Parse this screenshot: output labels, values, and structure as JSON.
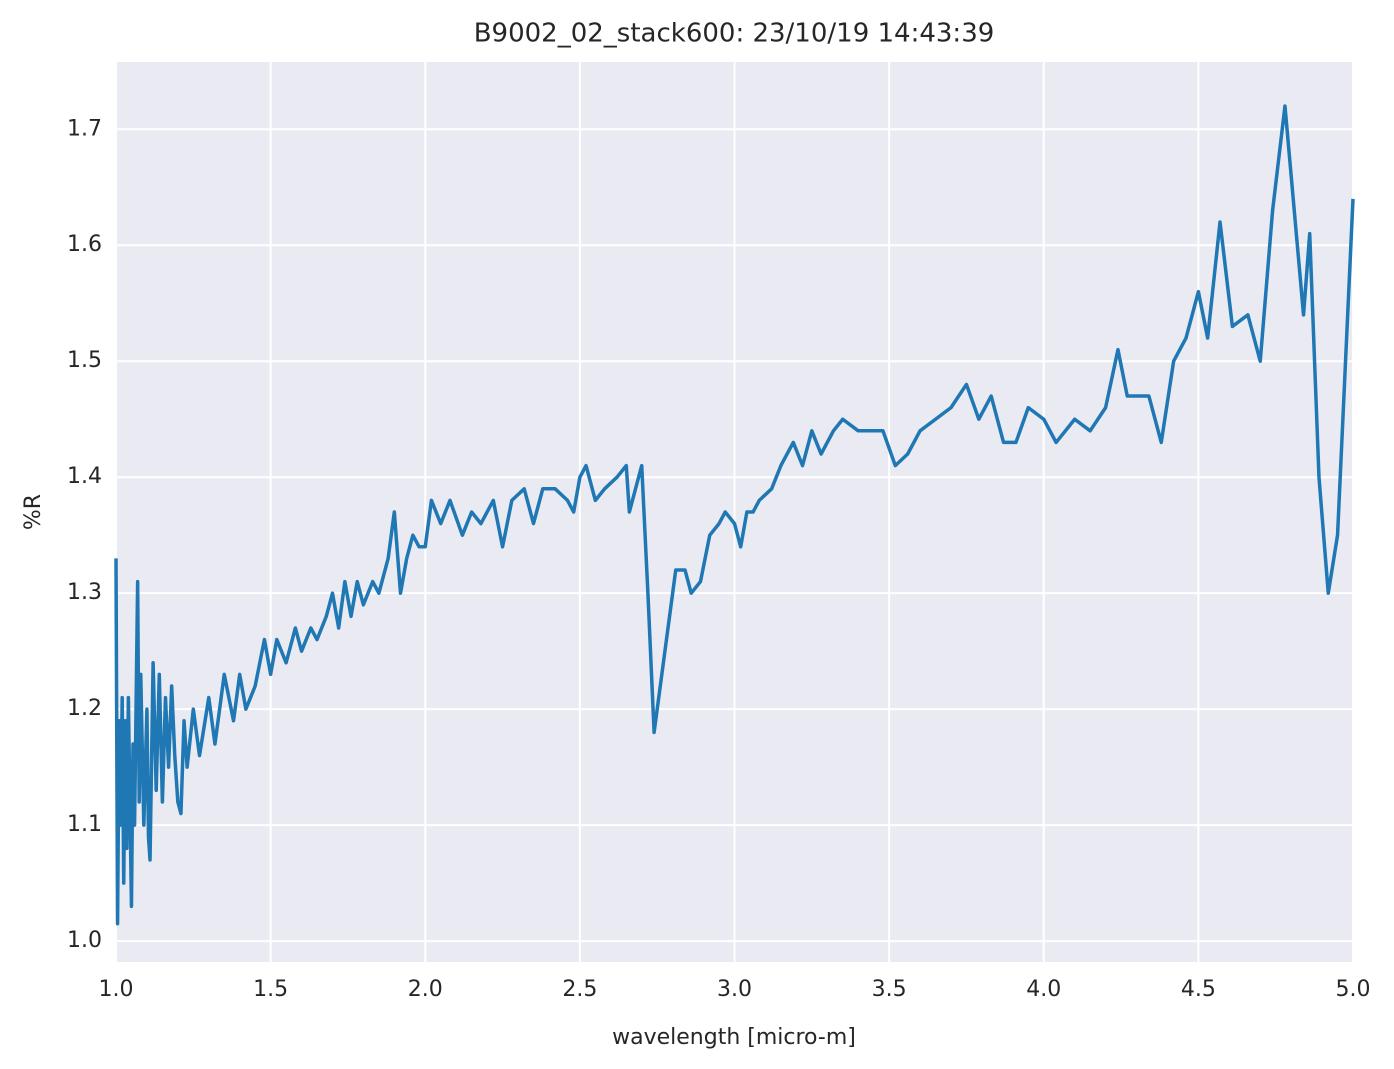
{
  "chart_data": {
    "type": "line",
    "title": "B9002_02_stack600:  23/10/19 14:43:39",
    "xlabel": "wavelength [micro-m]",
    "ylabel": "%R",
    "xlim": [
      1.0,
      5.0
    ],
    "ylim": [
      0.982,
      1.758
    ],
    "xticks": [
      {
        "value": 1,
        "label": "1.0"
      },
      1.5,
      {
        "value": 2,
        "label": "2.0"
      },
      2.5,
      {
        "value": 3,
        "label": "3.0"
      },
      3.5,
      {
        "value": 4,
        "label": "4.0"
      },
      4.5,
      {
        "value": 5,
        "label": "5.0"
      }
    ],
    "yticks": [
      {
        "value": 1,
        "label": "1.0"
      },
      1.1,
      1.2,
      1.3,
      1.4,
      1.5,
      1.6,
      1.7
    ],
    "grid": true,
    "x": [
      1.0,
      1.005,
      1.01,
      1.015,
      1.02,
      1.025,
      1.03,
      1.035,
      1.04,
      1.05,
      1.055,
      1.06,
      1.07,
      1.075,
      1.08,
      1.09,
      1.1,
      1.105,
      1.11,
      1.12,
      1.13,
      1.14,
      1.15,
      1.16,
      1.17,
      1.18,
      1.19,
      1.2,
      1.21,
      1.22,
      1.23,
      1.25,
      1.27,
      1.3,
      1.32,
      1.35,
      1.38,
      1.4,
      1.42,
      1.45,
      1.48,
      1.5,
      1.52,
      1.55,
      1.58,
      1.6,
      1.63,
      1.65,
      1.68,
      1.7,
      1.72,
      1.74,
      1.76,
      1.78,
      1.8,
      1.83,
      1.85,
      1.88,
      1.9,
      1.92,
      1.94,
      1.96,
      1.98,
      2.0,
      2.02,
      2.05,
      2.08,
      2.12,
      2.15,
      2.18,
      2.22,
      2.25,
      2.28,
      2.32,
      2.35,
      2.38,
      2.42,
      2.46,
      2.48,
      2.5,
      2.52,
      2.55,
      2.58,
      2.62,
      2.65,
      2.66,
      2.69,
      2.7,
      2.72,
      2.74,
      2.76,
      2.78,
      2.81,
      2.84,
      2.86,
      2.89,
      2.92,
      2.95,
      2.97,
      3.0,
      3.02,
      3.04,
      3.06,
      3.08,
      3.12,
      3.15,
      3.19,
      3.22,
      3.25,
      3.28,
      3.32,
      3.35,
      3.4,
      3.44,
      3.48,
      3.52,
      3.56,
      3.6,
      3.65,
      3.7,
      3.75,
      3.79,
      3.83,
      3.87,
      3.91,
      3.95,
      4.0,
      4.04,
      4.1,
      4.15,
      4.2,
      4.24,
      4.27,
      4.3,
      4.34,
      4.38,
      4.42,
      4.46,
      4.5,
      4.53,
      4.57,
      4.61,
      4.66,
      4.7,
      4.74,
      4.78,
      4.82,
      4.84,
      4.86,
      4.89,
      4.92,
      4.95,
      5.0
    ],
    "series": [
      {
        "name": "%R",
        "color": "#1f77b4",
        "values": [
          1.33,
          1.015,
          1.19,
          1.1,
          1.21,
          1.05,
          1.19,
          1.08,
          1.21,
          1.03,
          1.17,
          1.1,
          1.31,
          1.12,
          1.23,
          1.1,
          1.2,
          1.09,
          1.07,
          1.24,
          1.13,
          1.23,
          1.12,
          1.21,
          1.15,
          1.22,
          1.16,
          1.12,
          1.11,
          1.19,
          1.15,
          1.2,
          1.16,
          1.21,
          1.17,
          1.23,
          1.19,
          1.23,
          1.2,
          1.22,
          1.26,
          1.23,
          1.26,
          1.24,
          1.27,
          1.25,
          1.27,
          1.26,
          1.28,
          1.3,
          1.27,
          1.31,
          1.28,
          1.31,
          1.29,
          1.31,
          1.3,
          1.33,
          1.37,
          1.3,
          1.33,
          1.35,
          1.34,
          1.34,
          1.38,
          1.36,
          1.38,
          1.35,
          1.37,
          1.36,
          1.38,
          1.34,
          1.38,
          1.39,
          1.36,
          1.39,
          1.39,
          1.38,
          1.37,
          1.4,
          1.41,
          1.38,
          1.39,
          1.4,
          1.41,
          1.37,
          1.4,
          1.41,
          1.3,
          1.18,
          1.22,
          1.26,
          1.32,
          1.32,
          1.3,
          1.31,
          1.35,
          1.36,
          1.37,
          1.36,
          1.34,
          1.37,
          1.37,
          1.38,
          1.39,
          1.41,
          1.43,
          1.41,
          1.44,
          1.42,
          1.44,
          1.45,
          1.44,
          1.44,
          1.44,
          1.41,
          1.42,
          1.44,
          1.45,
          1.46,
          1.48,
          1.45,
          1.47,
          1.43,
          1.43,
          1.46,
          1.45,
          1.43,
          1.45,
          1.44,
          1.46,
          1.51,
          1.47,
          1.47,
          1.47,
          1.43,
          1.5,
          1.52,
          1.56,
          1.52,
          1.62,
          1.53,
          1.54,
          1.5,
          1.63,
          1.72,
          1.6,
          1.54,
          1.61,
          1.4,
          1.3,
          1.35,
          1.64
        ]
      }
    ]
  }
}
